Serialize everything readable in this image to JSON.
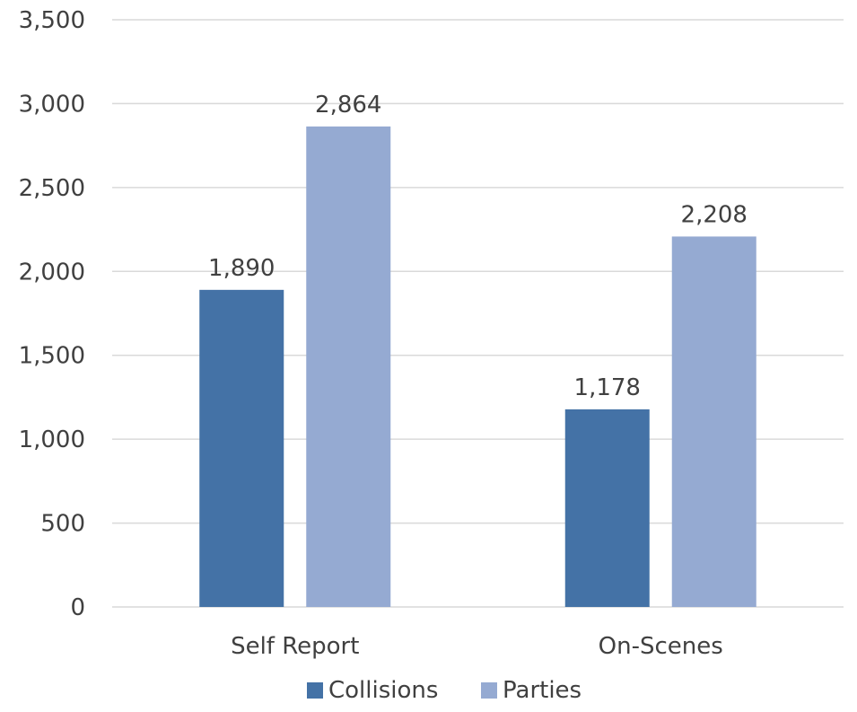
{
  "chart_data": {
    "type": "bar",
    "categories": [
      "Self Report",
      "On-Scenes"
    ],
    "series": [
      {
        "name": "Collisions",
        "values": [
          1890,
          1178
        ],
        "labels": [
          "1,890",
          "1,178"
        ],
        "color": "#4472a6"
      },
      {
        "name": "Parties",
        "values": [
          2864,
          2208
        ],
        "labels": [
          "2,864",
          "2,208"
        ],
        "color": "#95aad2"
      }
    ],
    "ylim": [
      0,
      3500
    ],
    "yticks": [
      0,
      500,
      1000,
      1500,
      2000,
      2500,
      3000,
      3500
    ],
    "ytick_labels": [
      "0",
      "500",
      "1,000",
      "1,500",
      "2,000",
      "2,500",
      "3,000",
      "3,500"
    ],
    "title": "",
    "xlabel": "",
    "ylabel": "",
    "grid": true,
    "legend_position": "bottom"
  }
}
